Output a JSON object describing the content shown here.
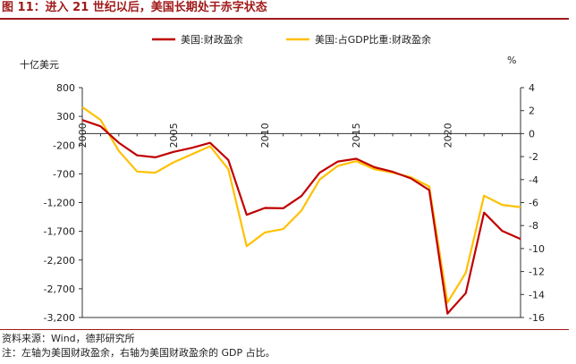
{
  "figure": {
    "title": "图 11：进入 21 世纪以后，美国长期处于赤字状态",
    "source": "资料来源：Wind，德邦研究所",
    "note": "注：左轴为美国财政盈余，右轴为美国财政盈余的 GDP 占比。"
  },
  "chart_data": {
    "type": "line",
    "x": [
      2000,
      2001,
      2002,
      2003,
      2004,
      2005,
      2006,
      2007,
      2008,
      2009,
      2010,
      2011,
      2012,
      2013,
      2014,
      2015,
      2016,
      2017,
      2018,
      2019,
      2020,
      2021,
      2022,
      2023,
      2024
    ],
    "x_ticks": [
      "2000",
      "2005",
      "2010",
      "2015",
      "2020"
    ],
    "y_left_unit": "十亿美元",
    "y_right_unit": "%",
    "y_left_ticks": [
      "800",
      "300",
      "-200",
      "-700",
      "-1,200",
      "-1,700",
      "-2,200",
      "-2,700",
      "-3,200"
    ],
    "y_right_ticks": [
      "4",
      "2",
      "0",
      "-2",
      "-4",
      "-6",
      "-8",
      "-10",
      "-12",
      "-14",
      "-16"
    ],
    "y_left_lim": [
      -3200,
      800
    ],
    "y_right_lim": [
      -16,
      4
    ],
    "series": [
      {
        "name": "美国:财政盈余",
        "axis": "left",
        "color": "#c00000",
        "values": [
          236,
          128,
          -158,
          -378,
          -413,
          -318,
          -248,
          -161,
          -459,
          -1413,
          -1294,
          -1300,
          -1087,
          -680,
          -485,
          -438,
          -585,
          -665,
          -779,
          -984,
          -3132,
          -2775,
          -1375,
          -1695,
          -1833
        ]
      },
      {
        "name": "美国:占GDP比重:财政盈余",
        "axis": "right",
        "color": "#ffc000",
        "values": [
          2.3,
          1.2,
          -1.5,
          -3.3,
          -3.4,
          -2.5,
          -1.8,
          -1.1,
          -3.1,
          -9.8,
          -8.6,
          -8.3,
          -6.7,
          -4.0,
          -2.8,
          -2.4,
          -3.1,
          -3.4,
          -3.8,
          -4.6,
          -14.7,
          -12.1,
          -5.4,
          -6.2,
          -6.4
        ]
      }
    ],
    "legend_position": "top"
  }
}
